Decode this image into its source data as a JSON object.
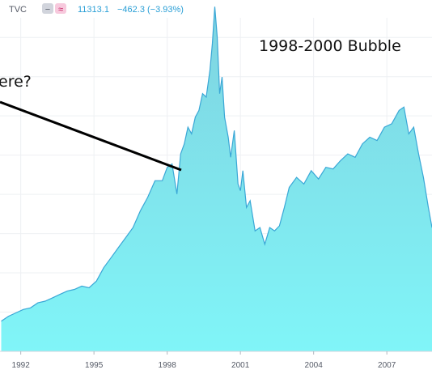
{
  "header": {
    "symbol": "TVC",
    "minus_glyph": "−",
    "wave_glyph": "≈",
    "last": "11313.1",
    "change": "−462.3 (−3.93%)",
    "symbol_color": "#555a66",
    "value_color": "#2a9fd6",
    "badge_gray": "#d1d4dc",
    "badge_pink": "#f7c9dd"
  },
  "annotations": {
    "bubble_label": "1998-2000 Bubble",
    "question_label": "ere?"
  },
  "colors": {
    "line": "#3aa7d6",
    "fill_top": "#7fd3e0",
    "fill_bottom": "#80f5f8",
    "grid": "#eef0f3",
    "arrow": "#000000"
  },
  "chart_data": {
    "type": "area",
    "x_ticks": [
      1992,
      1995,
      1998,
      2001,
      2004,
      2007
    ],
    "x_tick_labels": [
      "1992",
      "1995",
      "1998",
      "2001",
      "2004",
      "2007"
    ],
    "xlim": [
      1991.15,
      2008.85
    ],
    "ylim": [
      2000,
      12500
    ],
    "grid": true,
    "x": [
      1991.2,
      1991.5,
      1991.8,
      1992.1,
      1992.4,
      1992.7,
      1993.0,
      1993.3,
      1993.6,
      1993.9,
      1994.2,
      1994.5,
      1994.8,
      1995.1,
      1995.4,
      1995.7,
      1996.0,
      1996.3,
      1996.6,
      1996.9,
      1997.2,
      1997.5,
      1997.8,
      1998.0,
      1998.2,
      1998.4,
      1998.55,
      1998.7,
      1998.85,
      1999.0,
      1999.15,
      1999.3,
      1999.45,
      1999.6,
      1999.75,
      1999.85,
      1999.95,
      2000.05,
      2000.15,
      2000.25,
      2000.35,
      2000.5,
      2000.6,
      2000.75,
      2000.9,
      2001.0,
      2001.1,
      2001.25,
      2001.4,
      2001.6,
      2001.8,
      2002.0,
      2002.2,
      2002.4,
      2002.6,
      2002.8,
      2003.0,
      2003.3,
      2003.6,
      2003.9,
      2004.2,
      2004.5,
      2004.8,
      2005.1,
      2005.4,
      2005.7,
      2006.0,
      2006.3,
      2006.6,
      2006.9,
      2007.2,
      2007.5,
      2007.7,
      2007.9,
      2008.1,
      2008.3,
      2008.5,
      2008.7,
      2008.85
    ],
    "values": [
      2900,
      3050,
      3150,
      3250,
      3300,
      3450,
      3500,
      3600,
      3700,
      3800,
      3850,
      3950,
      3900,
      4100,
      4500,
      4800,
      5100,
      5400,
      5700,
      6200,
      6600,
      7100,
      7100,
      7500,
      7600,
      6700,
      7900,
      8200,
      8700,
      8500,
      9000,
      9200,
      9700,
      9600,
      10400,
      11200,
      12300,
      11400,
      9700,
      10200,
      9000,
      8400,
      7800,
      8600,
      7000,
      6800,
      7400,
      6300,
      6500,
      5600,
      5700,
      5200,
      5700,
      5600,
      5750,
      6300,
      6900,
      7200,
      7000,
      7400,
      7150,
      7500,
      7450,
      7700,
      7900,
      7800,
      8200,
      8400,
      8300,
      8700,
      8800,
      9200,
      9300,
      8500,
      8700,
      7900,
      7200,
      6300,
      5700
    ]
  }
}
